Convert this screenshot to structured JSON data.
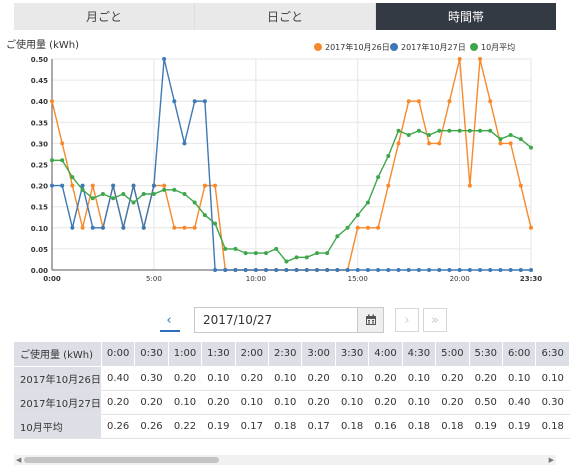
{
  "tabs": [
    {
      "label": "月ごと",
      "active": false
    },
    {
      "label": "日ごと",
      "active": false
    },
    {
      "label": "時間帯",
      "active": true
    }
  ],
  "pager": {
    "prev_label": "‹",
    "next_label": "›",
    "last_label": "»",
    "date_value": "2017/10/27",
    "calendar_icon": "calendar-icon"
  },
  "chart_data": {
    "type": "line",
    "ylabel": "ご使用量 (kWh)",
    "ylim": [
      0,
      0.5
    ],
    "y_ticks": [
      "0.00",
      "0.05",
      "0.10",
      "0.15",
      "0.20",
      "0.25",
      "0.30",
      "0.35",
      "0.40",
      "0.45",
      "0.50"
    ],
    "x_ticks": [
      {
        "index": 0,
        "label": "0:00"
      },
      {
        "index": 10,
        "label": "5:00"
      },
      {
        "index": 20,
        "label": "10:00"
      },
      {
        "index": 30,
        "label": "15:00"
      },
      {
        "index": 40,
        "label": "20:00"
      },
      {
        "index": 47,
        "label": "23:30"
      }
    ],
    "legend_position": "top-right",
    "grid": true,
    "x": [
      "0:00",
      "0:30",
      "1:00",
      "1:30",
      "2:00",
      "2:30",
      "3:00",
      "3:30",
      "4:00",
      "4:30",
      "5:00",
      "5:30",
      "6:00",
      "6:30",
      "7:00",
      "7:30",
      "8:00",
      "8:30",
      "9:00",
      "9:30",
      "10:00",
      "10:30",
      "11:00",
      "11:30",
      "12:00",
      "12:30",
      "13:00",
      "13:30",
      "14:00",
      "14:30",
      "15:00",
      "15:30",
      "16:00",
      "16:30",
      "17:00",
      "17:30",
      "18:00",
      "18:30",
      "19:00",
      "19:30",
      "20:00",
      "20:30",
      "21:00",
      "21:30",
      "22:00",
      "22:30",
      "23:00",
      "23:30"
    ],
    "series": [
      {
        "name": "2017年10月26日",
        "color": "#f7892b",
        "markers": true,
        "values": [
          0.4,
          0.3,
          0.2,
          0.1,
          0.2,
          0.1,
          0.2,
          0.1,
          0.2,
          0.1,
          0.2,
          0.2,
          0.1,
          0.1,
          0.1,
          0.2,
          0.2,
          0.0,
          0.0,
          0.0,
          0.0,
          0.0,
          0.0,
          0.0,
          0.0,
          0.0,
          0.0,
          0.0,
          0.0,
          0.0,
          0.1,
          0.1,
          0.1,
          0.2,
          0.3,
          0.4,
          0.4,
          0.3,
          0.3,
          0.4,
          0.5,
          0.2,
          0.5,
          0.4,
          0.3,
          0.3,
          0.2,
          0.1
        ]
      },
      {
        "name": "2017年10月27日",
        "color": "#3e79b6",
        "markers": true,
        "values": [
          0.2,
          0.2,
          0.1,
          0.2,
          0.1,
          0.1,
          0.2,
          0.1,
          0.2,
          0.1,
          0.2,
          0.5,
          0.4,
          0.3,
          0.4,
          0.4,
          0.0,
          0.0,
          0.0,
          0.0,
          0.0,
          0.0,
          0.0,
          0.0,
          0.0,
          0.0,
          0.0,
          0.0,
          0.0,
          0.0,
          0.0,
          0.0,
          0.0,
          0.0,
          0.0,
          0.0,
          0.0,
          0.0,
          0.0,
          0.0,
          0.0,
          0.0,
          0.0,
          0.0,
          0.0,
          0.0,
          0.0,
          0.0
        ]
      },
      {
        "name": "10月平均",
        "color": "#3ea64b",
        "markers": true,
        "values": [
          0.26,
          0.26,
          0.22,
          0.19,
          0.17,
          0.18,
          0.17,
          0.18,
          0.16,
          0.18,
          0.18,
          0.19,
          0.19,
          0.18,
          0.16,
          0.13,
          0.11,
          0.05,
          0.05,
          0.04,
          0.04,
          0.04,
          0.05,
          0.02,
          0.03,
          0.03,
          0.04,
          0.04,
          0.08,
          0.1,
          0.13,
          0.16,
          0.22,
          0.27,
          0.33,
          0.32,
          0.33,
          0.32,
          0.33,
          0.33,
          0.33,
          0.33,
          0.33,
          0.33,
          0.31,
          0.32,
          0.31,
          0.29
        ]
      }
    ]
  },
  "table": {
    "header_label": "ご使用量 (kWh)",
    "columns": [
      "0:00",
      "0:30",
      "1:00",
      "1:30",
      "2:00",
      "2:30",
      "3:00",
      "3:30",
      "4:00",
      "4:30",
      "5:00",
      "5:30",
      "6:00",
      "6:30"
    ],
    "rows": [
      {
        "label": "2017年10月26日",
        "values": [
          "0.40",
          "0.30",
          "0.20",
          "0.10",
          "0.20",
          "0.10",
          "0.20",
          "0.10",
          "0.20",
          "0.10",
          "0.20",
          "0.20",
          "0.10",
          "0.10"
        ]
      },
      {
        "label": "2017年10月27日",
        "values": [
          "0.20",
          "0.20",
          "0.10",
          "0.20",
          "0.10",
          "0.10",
          "0.20",
          "0.10",
          "0.20",
          "0.10",
          "0.20",
          "0.50",
          "0.40",
          "0.30"
        ]
      },
      {
        "label": "10月平均",
        "values": [
          "0.26",
          "0.26",
          "0.22",
          "0.19",
          "0.17",
          "0.18",
          "0.17",
          "0.18",
          "0.16",
          "0.18",
          "0.18",
          "0.19",
          "0.19",
          "0.18"
        ]
      }
    ]
  }
}
